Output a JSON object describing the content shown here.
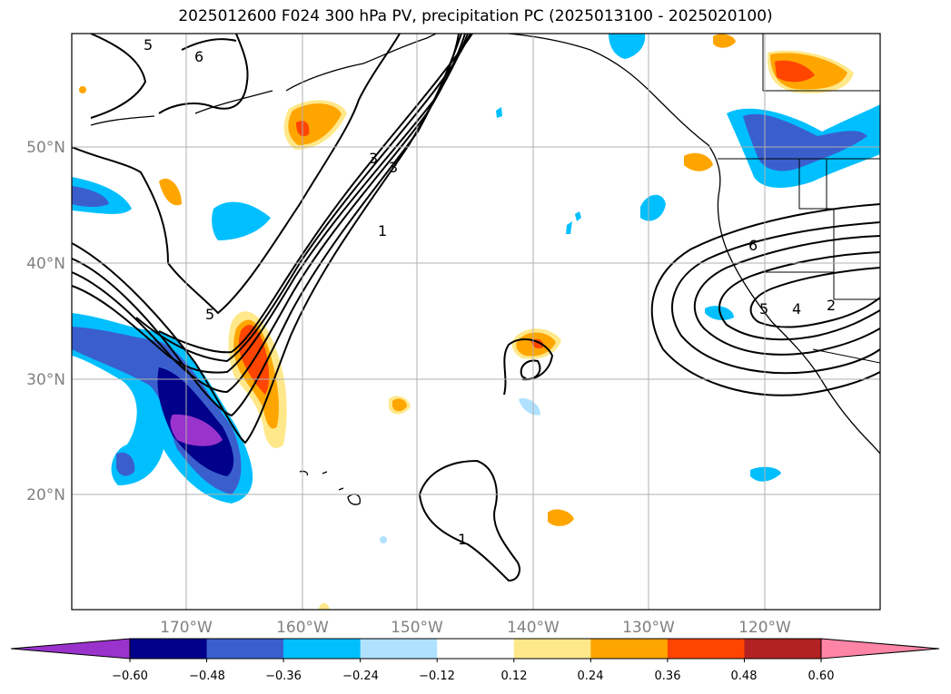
{
  "title": "2025012600 F024 300 hPa PV, precipitation PC (2025013100 - 2025020100)",
  "map": {
    "lat_labels": [
      "50°N",
      "40°N",
      "30°N",
      "20°N"
    ],
    "lon_labels": [
      "170°W",
      "160°W",
      "150°W",
      "140°W",
      "130°W",
      "120°W"
    ]
  },
  "pv_contour_labels": [
    "5",
    "6",
    "5",
    "3",
    "1",
    "3",
    "6",
    "5",
    "4",
    "2",
    "1"
  ],
  "colorbar": {
    "colors": [
      "#9933cc",
      "#00008b",
      "#3a5fcd",
      "#00bfff",
      "#b0e2ff",
      "#ffffff",
      "#ffe88a",
      "#ffa500",
      "#ff4500",
      "#b22222",
      "#ff85a6"
    ],
    "tick_labels": [
      "−0.60",
      "−0.48",
      "−0.36",
      "−0.24",
      "−0.12",
      "0.12",
      "0.24",
      "0.36",
      "0.48",
      "0.60"
    ]
  }
}
